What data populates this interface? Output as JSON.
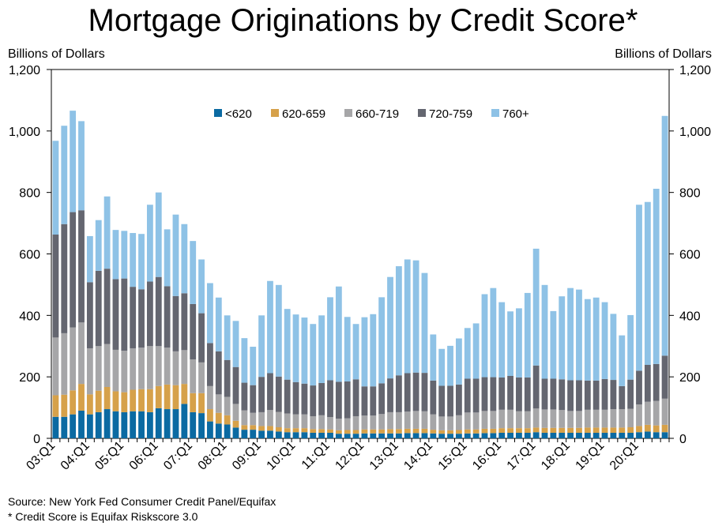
{
  "header": {
    "title": "Mortgage Originations by Credit Score*",
    "ylabel_left": "Billions of Dollars",
    "ylabel_right": "Billions of Dollars"
  },
  "footer": {
    "source": "Source: New York Fed Consumer Credit Panel/Equifax",
    "note": "* Credit Score is Equifax Riskscore 3.0"
  },
  "chart_data": {
    "type": "bar",
    "stacked": true,
    "title": "Mortgage Originations by Credit Score*",
    "ylabel": "Billions of Dollars",
    "ylim": [
      0,
      1200
    ],
    "yticks": [
      0,
      200,
      400,
      600,
      800,
      1000,
      1200
    ],
    "ytick_labels": [
      "0",
      "200",
      "400",
      "600",
      "800",
      "1,000",
      "1,200"
    ],
    "grid": false,
    "legend_position": "top-center",
    "categories": [
      "03:Q1",
      "03:Q2",
      "03:Q3",
      "03:Q4",
      "04:Q1",
      "04:Q2",
      "04:Q3",
      "04:Q4",
      "05:Q1",
      "05:Q2",
      "05:Q3",
      "05:Q4",
      "06:Q1",
      "06:Q2",
      "06:Q3",
      "06:Q4",
      "07:Q1",
      "07:Q2",
      "07:Q3",
      "07:Q4",
      "08:Q1",
      "08:Q2",
      "08:Q3",
      "08:Q4",
      "09:Q1",
      "09:Q2",
      "09:Q3",
      "09:Q4",
      "10:Q1",
      "10:Q2",
      "10:Q3",
      "10:Q4",
      "11:Q1",
      "11:Q2",
      "11:Q3",
      "11:Q4",
      "12:Q1",
      "12:Q2",
      "12:Q3",
      "12:Q4",
      "13:Q1",
      "13:Q2",
      "13:Q3",
      "13:Q4",
      "14:Q1",
      "14:Q2",
      "14:Q3",
      "14:Q4",
      "15:Q1",
      "15:Q2",
      "15:Q3",
      "15:Q4",
      "16:Q1",
      "16:Q2",
      "16:Q3",
      "16:Q4",
      "17:Q1",
      "17:Q2",
      "17:Q3",
      "17:Q4",
      "18:Q1",
      "18:Q2",
      "18:Q3",
      "18:Q4",
      "19:Q1",
      "19:Q2",
      "19:Q3",
      "19:Q4",
      "20:Q1",
      "20:Q2",
      "20:Q3",
      "20:Q4"
    ],
    "xtick_labels": [
      "03:Q1",
      "04:Q1",
      "05:Q1",
      "06:Q1",
      "07:Q1",
      "08:Q1",
      "09:Q1",
      "10:Q1",
      "11:Q1",
      "12:Q1",
      "13:Q1",
      "14:Q1",
      "15:Q1",
      "16:Q1",
      "17:Q1",
      "18:Q1",
      "19:Q1",
      "20:Q1"
    ],
    "series": [
      {
        "name": "<620",
        "color": "#0b6aa2",
        "values": [
          70,
          70,
          78,
          90,
          78,
          85,
          95,
          88,
          85,
          88,
          88,
          85,
          98,
          95,
          95,
          112,
          85,
          82,
          55,
          48,
          45,
          35,
          28,
          28,
          25,
          25,
          22,
          20,
          20,
          20,
          18,
          18,
          18,
          15,
          15,
          15,
          16,
          16,
          16,
          16,
          16,
          17,
          17,
          17,
          16,
          15,
          15,
          15,
          16,
          16,
          17,
          17,
          18,
          18,
          18,
          18,
          20,
          18,
          18,
          18,
          18,
          18,
          18,
          18,
          18,
          18,
          18,
          18,
          20,
          22,
          20,
          20
        ]
      },
      {
        "name": "620-659",
        "color": "#d6a14a",
        "values": [
          70,
          72,
          78,
          87,
          65,
          70,
          72,
          65,
          65,
          70,
          72,
          75,
          72,
          80,
          78,
          65,
          62,
          65,
          40,
          35,
          30,
          22,
          15,
          15,
          15,
          15,
          14,
          13,
          13,
          13,
          12,
          12,
          11,
          11,
          12,
          12,
          13,
          13,
          13,
          14,
          14,
          14,
          14,
          14,
          12,
          11,
          11,
          12,
          13,
          13,
          14,
          14,
          15,
          15,
          15,
          15,
          15,
          16,
          16,
          16,
          16,
          16,
          17,
          17,
          17,
          17,
          17,
          18,
          20,
          22,
          22,
          24
        ]
      },
      {
        "name": "660-719",
        "color": "#a6a6a8",
        "values": [
          188,
          200,
          205,
          200,
          150,
          145,
          140,
          135,
          135,
          135,
          135,
          140,
          130,
          120,
          110,
          110,
          110,
          100,
          75,
          60,
          60,
          55,
          48,
          40,
          45,
          52,
          50,
          48,
          45,
          45,
          42,
          45,
          40,
          38,
          38,
          45,
          45,
          45,
          50,
          55,
          55,
          56,
          58,
          57,
          50,
          45,
          45,
          48,
          55,
          55,
          58,
          58,
          60,
          60,
          55,
          55,
          62,
          60,
          60,
          58,
          55,
          55,
          58,
          58,
          58,
          60,
          60,
          60,
          70,
          75,
          80,
          85
        ]
      },
      {
        "name": "720-759",
        "color": "#646670",
        "values": [
          335,
          355,
          375,
          365,
          215,
          245,
          245,
          230,
          235,
          200,
          190,
          210,
          225,
          200,
          180,
          185,
          180,
          160,
          140,
          140,
          120,
          120,
          90,
          90,
          115,
          120,
          115,
          110,
          105,
          100,
          100,
          105,
          120,
          120,
          120,
          120,
          95,
          95,
          100,
          110,
          120,
          125,
          125,
          125,
          110,
          100,
          100,
          100,
          110,
          110,
          110,
          110,
          105,
          110,
          110,
          110,
          140,
          100,
          100,
          100,
          100,
          100,
          95,
          95,
          100,
          95,
          75,
          95,
          110,
          120,
          120,
          140
        ]
      },
      {
        "name": "760+",
        "color": "#8ec2e6",
        "values": [
          305,
          320,
          330,
          290,
          150,
          165,
          235,
          160,
          155,
          175,
          180,
          250,
          275,
          185,
          265,
          225,
          205,
          175,
          195,
          175,
          145,
          150,
          145,
          125,
          200,
          300,
          298,
          230,
          220,
          215,
          200,
          220,
          270,
          310,
          210,
          180,
          225,
          235,
          280,
          330,
          355,
          370,
          365,
          325,
          150,
          120,
          130,
          150,
          165,
          180,
          270,
          290,
          245,
          210,
          225,
          275,
          380,
          305,
          220,
          270,
          300,
          295,
          265,
          270,
          250,
          215,
          165,
          210,
          540,
          530,
          570,
          780
        ]
      }
    ]
  }
}
